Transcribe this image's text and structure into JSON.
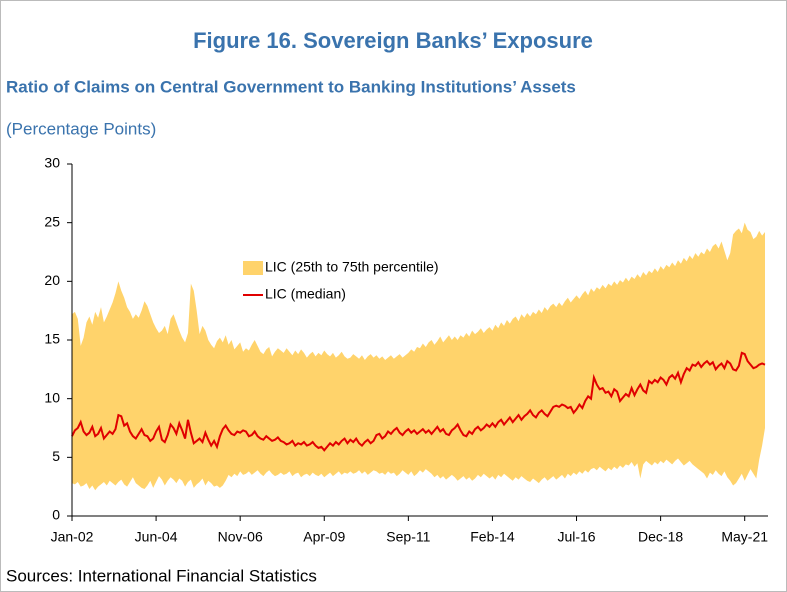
{
  "chart_data": {
    "type": "line",
    "title": "Figure 16. Sovereign Banks’ Exposure",
    "subtitle": "Ratio of Claims on Central Government to Banking Institutions’ Assets",
    "units": "(Percentage Points)",
    "source": "Sources: International Financial Statistics",
    "categories": [
      "Jan-02",
      null,
      null,
      null,
      null,
      null,
      null,
      null,
      null,
      null,
      null,
      null,
      null,
      null,
      null,
      null,
      null,
      null,
      null,
      null,
      null,
      null,
      null,
      null,
      null,
      null,
      null,
      null,
      null,
      "Jun-04",
      null,
      null,
      null,
      null,
      null,
      null,
      null,
      null,
      null,
      null,
      null,
      null,
      null,
      null,
      null,
      null,
      null,
      null,
      null,
      null,
      null,
      null,
      null,
      null,
      null,
      null,
      null,
      null,
      "Nov-06",
      null,
      null,
      null,
      null,
      null,
      null,
      null,
      null,
      null,
      null,
      null,
      null,
      null,
      null,
      null,
      null,
      null,
      null,
      null,
      null,
      null,
      null,
      null,
      null,
      null,
      null,
      null,
      null,
      "Apr-09",
      null,
      null,
      null,
      null,
      null,
      null,
      null,
      null,
      null,
      null,
      null,
      null,
      null,
      null,
      null,
      null,
      null,
      null,
      null,
      null,
      null,
      null,
      null,
      null,
      null,
      null,
      null,
      null,
      "Sep-11",
      null,
      null,
      null,
      null,
      null,
      null,
      null,
      null,
      null,
      null,
      null,
      null,
      null,
      null,
      null,
      null,
      null,
      null,
      null,
      null,
      null,
      null,
      null,
      null,
      null,
      null,
      null,
      null,
      "Feb-14",
      null,
      null,
      null,
      null,
      null,
      null,
      null,
      null,
      null,
      null,
      null,
      null,
      null,
      null,
      null,
      null,
      null,
      null,
      null,
      null,
      null,
      null,
      null,
      null,
      null,
      null,
      null,
      null,
      "Jul-16",
      null,
      null,
      null,
      null,
      null,
      null,
      null,
      null,
      null,
      null,
      null,
      null,
      null,
      null,
      null,
      null,
      null,
      null,
      null,
      null,
      null,
      null,
      null,
      null,
      null,
      null,
      null,
      null,
      "Dec-18",
      null,
      null,
      null,
      null,
      null,
      null,
      null,
      null,
      null,
      null,
      null,
      null,
      null,
      null,
      null,
      null,
      null,
      null,
      null,
      null,
      null,
      null,
      null,
      null,
      null,
      null,
      null,
      null,
      "May-21",
      null,
      null,
      null,
      null,
      null,
      null,
      null
    ],
    "series": [
      {
        "name": "LIC (25th to 75th percentile)",
        "color": "#ffd36b",
        "kind": "band",
        "low": [
          2.8,
          2.7,
          2.9,
          2.5,
          2.6,
          2.8,
          2.3,
          2.6,
          2.2,
          2.5,
          2.7,
          2.9,
          2.6,
          3.0,
          2.8,
          2.6,
          2.9,
          3.1,
          2.7,
          2.5,
          2.9,
          3.3,
          2.8,
          2.6,
          2.4,
          2.3,
          2.6,
          3.0,
          2.4,
          2.9,
          3.4,
          3.1,
          2.6,
          3.0,
          3.3,
          3.1,
          2.8,
          3.2,
          3.0,
          2.5,
          2.9,
          3.1,
          2.4,
          2.7,
          2.9,
          3.2,
          2.6,
          3.0,
          2.8,
          2.5,
          2.6,
          2.4,
          2.6,
          3.0,
          3.5,
          3.3,
          3.6,
          3.4,
          3.8,
          3.5,
          3.6,
          3.8,
          3.5,
          3.7,
          3.9,
          3.6,
          3.4,
          3.7,
          3.9,
          3.6,
          3.4,
          3.5,
          3.7,
          3.5,
          3.6,
          3.8,
          3.4,
          3.6,
          3.7,
          3.3,
          3.5,
          3.6,
          3.4,
          3.7,
          3.5,
          3.4,
          3.6,
          3.3,
          3.5,
          3.7,
          3.4,
          3.6,
          3.8,
          3.5,
          3.7,
          3.6,
          3.8,
          3.6,
          3.7,
          3.9,
          3.6,
          3.8,
          3.5,
          3.7,
          3.9,
          3.8,
          3.6,
          3.7,
          3.5,
          3.8,
          3.6,
          3.7,
          3.4,
          3.6,
          3.9,
          3.7,
          3.5,
          3.8,
          3.4,
          3.6,
          3.9,
          3.7,
          4.0,
          3.8,
          3.6,
          3.3,
          3.5,
          3.2,
          3.4,
          3.1,
          3.3,
          3.5,
          3.3,
          3.0,
          3.2,
          3.4,
          3.1,
          3.3,
          3.0,
          3.2,
          3.5,
          3.3,
          3.6,
          3.4,
          3.2,
          3.4,
          3.1,
          3.5,
          3.3,
          3.6,
          3.4,
          3.2,
          3.0,
          3.3,
          3.1,
          3.4,
          3.2,
          3.0,
          2.9,
          3.2,
          3.0,
          2.8,
          3.1,
          3.3,
          3.0,
          3.2,
          3.4,
          3.1,
          3.3,
          3.5,
          3.2,
          3.6,
          3.4,
          3.7,
          3.5,
          3.8,
          3.6,
          3.9,
          3.7,
          4.0,
          4.1,
          3.9,
          4.2,
          4.0,
          3.8,
          4.1,
          3.9,
          4.2,
          4.0,
          4.3,
          4.1,
          4.4,
          4.3,
          4.6,
          4.2,
          4.5,
          3.2,
          4.4,
          4.7,
          4.5,
          4.3,
          4.6,
          4.4,
          4.7,
          4.5,
          4.8,
          4.6,
          4.4,
          4.7,
          4.9,
          4.6,
          4.3,
          4.5,
          4.7,
          4.4,
          4.2,
          4.0,
          3.8,
          3.6,
          3.2,
          3.7,
          3.5,
          3.9,
          3.6,
          3.4,
          3.8,
          3.3,
          3.0,
          2.6,
          2.8,
          3.2,
          3.6,
          3.0,
          3.5,
          4.0,
          3.6,
          3.2,
          4.8,
          6.0,
          7.5
        ],
        "high": [
          17.2,
          17.4,
          16.8,
          14.5,
          15.2,
          16.5,
          17.0,
          16.3,
          17.4,
          16.9,
          17.8,
          16.5,
          17.0,
          17.6,
          18.2,
          19.0,
          20.0,
          19.2,
          18.6,
          17.8,
          17.4,
          16.8,
          17.2,
          16.9,
          17.5,
          18.3,
          17.9,
          17.2,
          16.5,
          16.0,
          15.6,
          15.8,
          16.2,
          15.5,
          16.8,
          17.2,
          16.5,
          15.8,
          15.2,
          14.8,
          15.6,
          19.8,
          19.2,
          17.5,
          15.5,
          16.2,
          15.8,
          15.0,
          14.6,
          14.3,
          14.9,
          15.2,
          14.8,
          15.4,
          14.6,
          15.0,
          14.2,
          14.5,
          14.8,
          14.0,
          14.3,
          14.1,
          14.6,
          15.0,
          14.5,
          14.0,
          13.8,
          14.2,
          14.4,
          13.6,
          14.0,
          14.3,
          14.1,
          13.9,
          14.3,
          14.0,
          13.7,
          14.1,
          13.8,
          14.2,
          13.9,
          13.5,
          13.8,
          14.0,
          13.6,
          13.9,
          13.7,
          14.1,
          13.8,
          13.6,
          13.9,
          13.5,
          13.7,
          14.0,
          13.6,
          13.4,
          13.5,
          13.8,
          13.6,
          13.4,
          13.7,
          13.3,
          13.6,
          13.8,
          13.5,
          13.7,
          13.4,
          13.6,
          13.3,
          13.5,
          13.7,
          13.4,
          13.6,
          13.8,
          13.5,
          13.7,
          13.9,
          14.2,
          14.0,
          14.4,
          14.3,
          14.7,
          14.4,
          14.8,
          15.0,
          14.6,
          14.9,
          15.3,
          14.8,
          15.1,
          15.4,
          15.0,
          15.3,
          15.0,
          15.4,
          15.2,
          15.6,
          15.3,
          15.8,
          15.5,
          15.7,
          16.0,
          15.6,
          15.9,
          16.1,
          15.8,
          16.3,
          16.0,
          16.5,
          16.2,
          16.7,
          16.4,
          16.8,
          17.0,
          16.6,
          17.2,
          16.9,
          17.3,
          17.0,
          17.4,
          17.2,
          17.6,
          17.3,
          17.8,
          17.5,
          17.9,
          18.1,
          17.8,
          18.2,
          17.9,
          18.3,
          18.6,
          18.2,
          18.5,
          18.8,
          18.5,
          18.9,
          19.2,
          18.8,
          19.4,
          19.1,
          19.5,
          19.3,
          19.7,
          19.4,
          19.8,
          19.6,
          20.0,
          19.7,
          20.1,
          19.9,
          20.3,
          20.0,
          20.4,
          20.2,
          20.6,
          20.3,
          20.8,
          20.5,
          20.9,
          20.7,
          21.1,
          20.8,
          21.3,
          21.0,
          21.4,
          21.2,
          21.6,
          21.3,
          21.8,
          21.5,
          22.0,
          21.7,
          22.2,
          21.9,
          22.4,
          22.1,
          22.5,
          22.3,
          22.8,
          22.5,
          23.0,
          23.2,
          22.8,
          23.4,
          22.6,
          21.8,
          22.4,
          24.0,
          24.3,
          24.5,
          24.1,
          25.0,
          24.4,
          24.2,
          23.6,
          23.8,
          24.3,
          23.9,
          24.2
        ]
      },
      {
        "name": "LIC (median)",
        "color": "#e00000",
        "values": [
          6.8,
          7.3,
          7.5,
          8.0,
          7.2,
          6.9,
          7.1,
          7.6,
          6.8,
          7.0,
          7.5,
          6.6,
          6.9,
          7.2,
          7.0,
          7.4,
          8.6,
          8.5,
          7.7,
          7.9,
          7.2,
          6.8,
          6.6,
          7.0,
          7.4,
          6.9,
          6.8,
          6.4,
          6.6,
          7.2,
          7.6,
          6.5,
          6.3,
          6.9,
          7.8,
          7.5,
          7.0,
          7.9,
          7.3,
          6.6,
          8.2,
          7.1,
          6.2,
          6.4,
          6.6,
          6.3,
          7.1,
          6.5,
          6.0,
          6.4,
          5.9,
          6.8,
          7.4,
          7.7,
          7.3,
          7.0,
          6.9,
          7.2,
          7.1,
          7.3,
          7.2,
          6.8,
          6.9,
          7.2,
          6.8,
          6.6,
          6.5,
          6.8,
          6.6,
          6.4,
          6.5,
          6.7,
          6.4,
          6.3,
          6.1,
          6.2,
          6.4,
          6.0,
          6.2,
          6.1,
          6.3,
          6.0,
          6.1,
          6.3,
          6.0,
          5.8,
          5.9,
          5.6,
          5.9,
          6.2,
          6.0,
          6.3,
          6.1,
          6.4,
          6.6,
          6.2,
          6.5,
          6.3,
          6.6,
          6.2,
          6.0,
          6.3,
          6.5,
          6.2,
          6.4,
          6.9,
          7.0,
          6.6,
          6.8,
          7.2,
          7.0,
          7.3,
          7.5,
          7.1,
          6.9,
          7.2,
          7.4,
          7.1,
          7.3,
          7.0,
          7.2,
          7.4,
          7.1,
          7.3,
          7.0,
          7.3,
          7.6,
          7.2,
          7.4,
          7.0,
          6.9,
          7.3,
          7.5,
          7.8,
          7.3,
          6.9,
          6.8,
          7.2,
          7.0,
          7.4,
          7.6,
          7.3,
          7.5,
          7.8,
          7.6,
          7.9,
          7.6,
          8.0,
          8.2,
          7.8,
          8.1,
          8.4,
          8.0,
          8.3,
          8.6,
          8.2,
          8.5,
          8.7,
          9.0,
          8.6,
          8.4,
          8.8,
          9.0,
          8.7,
          8.5,
          8.9,
          9.3,
          9.4,
          9.3,
          9.5,
          9.4,
          9.2,
          9.3,
          8.8,
          9.1,
          9.5,
          9.2,
          9.8,
          10.2,
          10.0,
          11.8,
          11.2,
          10.8,
          10.9,
          10.5,
          10.6,
          10.2,
          10.8,
          10.6,
          9.8,
          10.1,
          10.4,
          10.2,
          10.9,
          10.3,
          10.8,
          11.2,
          10.7,
          10.5,
          11.5,
          11.3,
          11.6,
          11.4,
          11.8,
          11.6,
          11.2,
          11.8,
          12.0,
          11.7,
          12.2,
          11.4,
          12.1,
          12.6,
          12.4,
          12.9,
          12.8,
          13.1,
          12.7,
          13.0,
          13.2,
          12.9,
          13.1,
          12.5,
          12.8,
          13.0,
          12.6,
          13.2,
          13.0,
          12.5,
          12.4,
          12.8,
          13.9,
          13.8,
          13.2,
          12.9,
          12.6,
          12.7,
          12.9,
          13.0,
          12.9
        ]
      }
    ],
    "ylim": [
      0,
      30
    ],
    "yticks": [
      0,
      5,
      10,
      15,
      20,
      25,
      30
    ],
    "grid": false
  }
}
